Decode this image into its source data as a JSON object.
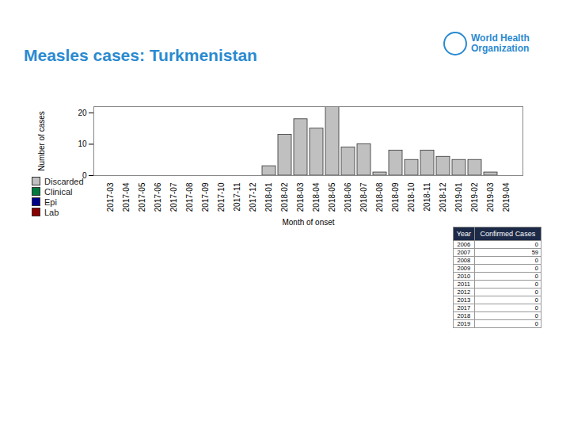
{
  "chart_data": {
    "type": "bar",
    "title": "Measles cases: Turkmenistan",
    "x_label": "Month of onset",
    "y_label": "Number of cases",
    "categories": [
      "2017-03",
      "2017-04",
      "2017-05",
      "2017-06",
      "2017-07",
      "2017-08",
      "2017-09",
      "2017-10",
      "2017-11",
      "2017-12",
      "2018-01",
      "2018-02",
      "2018-03",
      "2018-04",
      "2018-05",
      "2018-06",
      "2018-07",
      "2018-08",
      "2018-09",
      "2018-10",
      "2018-11",
      "2018-12",
      "2019-01",
      "2019-02",
      "2019-03",
      "2019-04"
    ],
    "series": [
      {
        "name": "Discarded",
        "color": "#c0c0c0",
        "values": [
          0,
          0,
          0,
          0,
          0,
          0,
          0,
          0,
          0,
          0,
          3,
          13,
          18,
          15,
          22,
          9,
          10,
          1,
          8,
          5,
          8,
          6,
          5,
          5,
          1,
          0
        ]
      },
      {
        "name": "Clinical",
        "color": "#007a3d",
        "values": [
          0,
          0,
          0,
          0,
          0,
          0,
          0,
          0,
          0,
          0,
          0,
          0,
          0,
          0,
          0,
          0,
          0,
          0,
          0,
          0,
          0,
          0,
          0,
          0,
          0,
          0
        ]
      },
      {
        "name": "Epi",
        "color": "#00008b",
        "values": [
          0,
          0,
          0,
          0,
          0,
          0,
          0,
          0,
          0,
          0,
          0,
          0,
          0,
          0,
          0,
          0,
          0,
          0,
          0,
          0,
          0,
          0,
          0,
          0,
          0,
          0
        ]
      },
      {
        "name": "Lab",
        "color": "#8b0000",
        "values": [
          0,
          0,
          0,
          0,
          0,
          0,
          0,
          0,
          0,
          0,
          0,
          0,
          0,
          0,
          0,
          0,
          0,
          0,
          0,
          0,
          0,
          0,
          0,
          0,
          0,
          0
        ]
      }
    ],
    "stacked": true,
    "ylim": [
      0,
      22
    ],
    "yticks": [
      0,
      10,
      20
    ],
    "grid": false,
    "legend": "bottom-left"
  },
  "organization": "World Health Organization",
  "table": {
    "columns": [
      "Year",
      "Confirmed Cases"
    ],
    "rows": [
      [
        2006,
        0
      ],
      [
        2007,
        59
      ],
      [
        2008,
        0
      ],
      [
        2009,
        0
      ],
      [
        2010,
        0
      ],
      [
        2011,
        0
      ],
      [
        2012,
        0
      ],
      [
        2013,
        0
      ],
      [
        2017,
        0
      ],
      [
        2018,
        0
      ],
      [
        2019,
        0
      ]
    ]
  }
}
